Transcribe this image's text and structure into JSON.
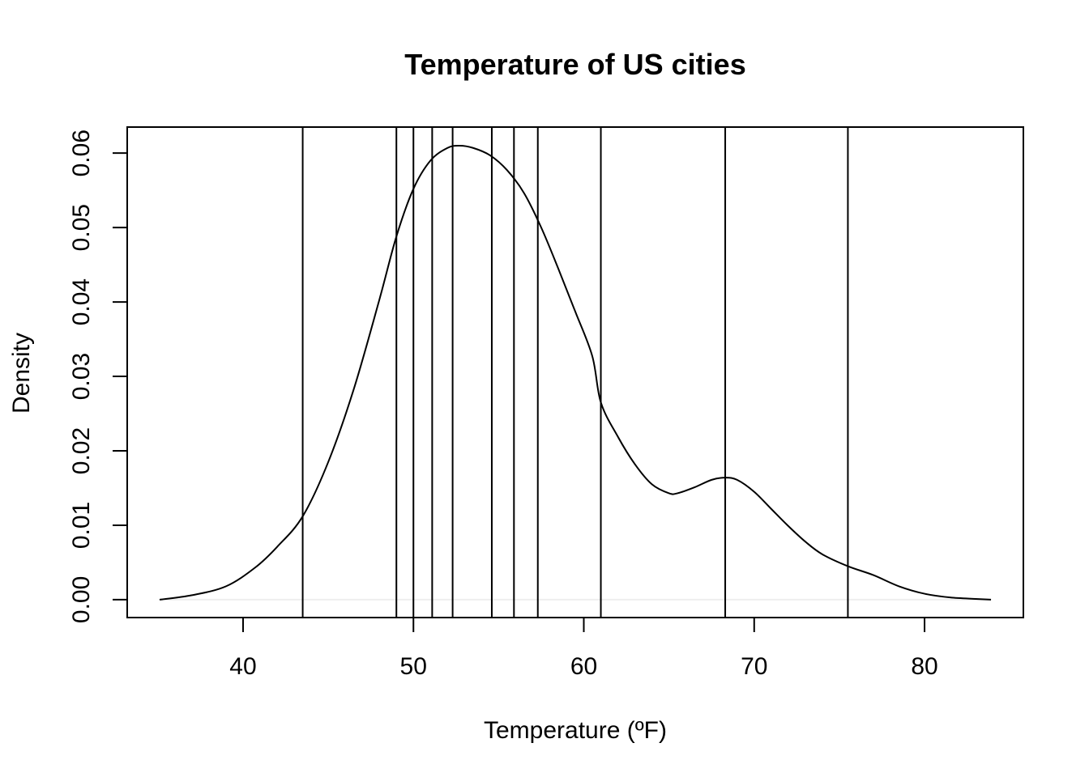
{
  "chart_data": {
    "type": "line",
    "title": "Temperature of US cities",
    "xlabel": "Temperature (ºF)",
    "ylabel": "Density",
    "xlim": [
      33.2,
      85.8
    ],
    "ylim": [
      -0.0024,
      0.0635
    ],
    "x_ticks": [
      40,
      50,
      60,
      70,
      80
    ],
    "x_tick_labels": [
      "40",
      "50",
      "60",
      "70",
      "80"
    ],
    "y_ticks": [
      0,
      0.01,
      0.02,
      0.03,
      0.04,
      0.05,
      0.06
    ],
    "y_tick_labels": [
      "0.00",
      "0.01",
      "0.02",
      "0.03",
      "0.04",
      "0.05",
      "0.06"
    ],
    "grid": false,
    "legend": "none",
    "series": [
      {
        "x": [
          35.1,
          37,
          39,
          40.7,
          42,
          43.5,
          45,
          46.5,
          48,
          49,
          50,
          51,
          52,
          52.7,
          53.5,
          54.5,
          55.5,
          56.5,
          57.5,
          58.5,
          59.5,
          60.5,
          61,
          62,
          63,
          64,
          65,
          65.5,
          66.5,
          67.5,
          68.3,
          69,
          70,
          71,
          72,
          73,
          74,
          75.5,
          77,
          78.5,
          80,
          81.5,
          83,
          83.9
        ],
        "y": [
          0.0,
          0.0006,
          0.0018,
          0.0043,
          0.0071,
          0.0112,
          0.0185,
          0.0283,
          0.0403,
          0.0488,
          0.0552,
          0.059,
          0.0607,
          0.061,
          0.0607,
          0.0597,
          0.0577,
          0.0546,
          0.05,
          0.0445,
          0.0387,
          0.0327,
          0.0265,
          0.0219,
          0.0182,
          0.0155,
          0.0143,
          0.0143,
          0.0151,
          0.0161,
          0.0164,
          0.0161,
          0.0145,
          0.0122,
          0.0099,
          0.0078,
          0.0061,
          0.0045,
          0.0033,
          0.0018,
          0.0008,
          0.0003,
          0.0001,
          0.0
        ]
      }
    ],
    "vertical_lines": [
      43.5,
      49.0,
      50.0,
      51.1,
      52.3,
      54.6,
      55.9,
      57.3,
      61.0,
      68.3,
      75.5
    ],
    "baseline": 0.0,
    "colors": {
      "line": "#000000",
      "baseline": "#eeeeee",
      "background": "#ffffff"
    }
  }
}
